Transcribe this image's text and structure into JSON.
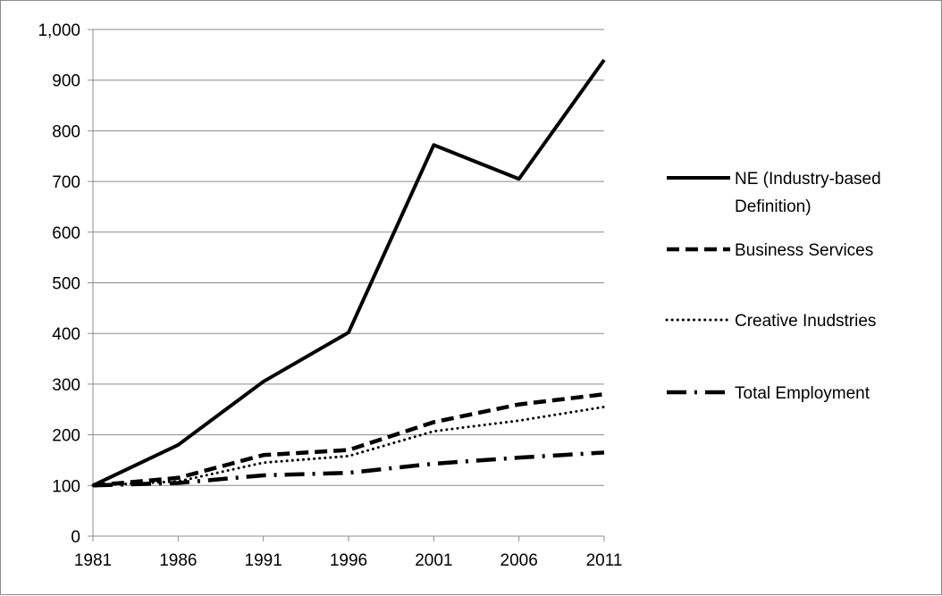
{
  "chart_data": {
    "type": "line",
    "title": "",
    "xlabel": "",
    "ylabel": "",
    "categories": [
      "1981",
      "1986",
      "1991",
      "1996",
      "2001",
      "2006",
      "2011"
    ],
    "ylim": [
      0,
      1000
    ],
    "yticks": [
      "0",
      "100",
      "200",
      "300",
      "400",
      "500",
      "600",
      "700",
      "800",
      "900",
      "1,000"
    ],
    "grid": true,
    "legend_position": "right",
    "series": [
      {
        "name": "NE (Industry-based Definition)",
        "name_lines": [
          "NE (Industry-based",
          "Definition)"
        ],
        "style": "solid",
        "values": [
          100,
          180,
          305,
          402,
          772,
          705,
          940
        ]
      },
      {
        "name": "Business Services",
        "name_lines": [
          "Business Services"
        ],
        "style": "dashed",
        "values": [
          100,
          115,
          160,
          170,
          225,
          260,
          280
        ]
      },
      {
        "name": "Creative Inudstries",
        "name_lines": [
          "Creative Inudstries"
        ],
        "style": "dotted",
        "values": [
          100,
          108,
          145,
          158,
          207,
          228,
          255
        ]
      },
      {
        "name": "Total Employment",
        "name_lines": [
          "Total Employment"
        ],
        "style": "dash-dot",
        "values": [
          100,
          105,
          120,
          125,
          143,
          155,
          165
        ]
      }
    ]
  }
}
